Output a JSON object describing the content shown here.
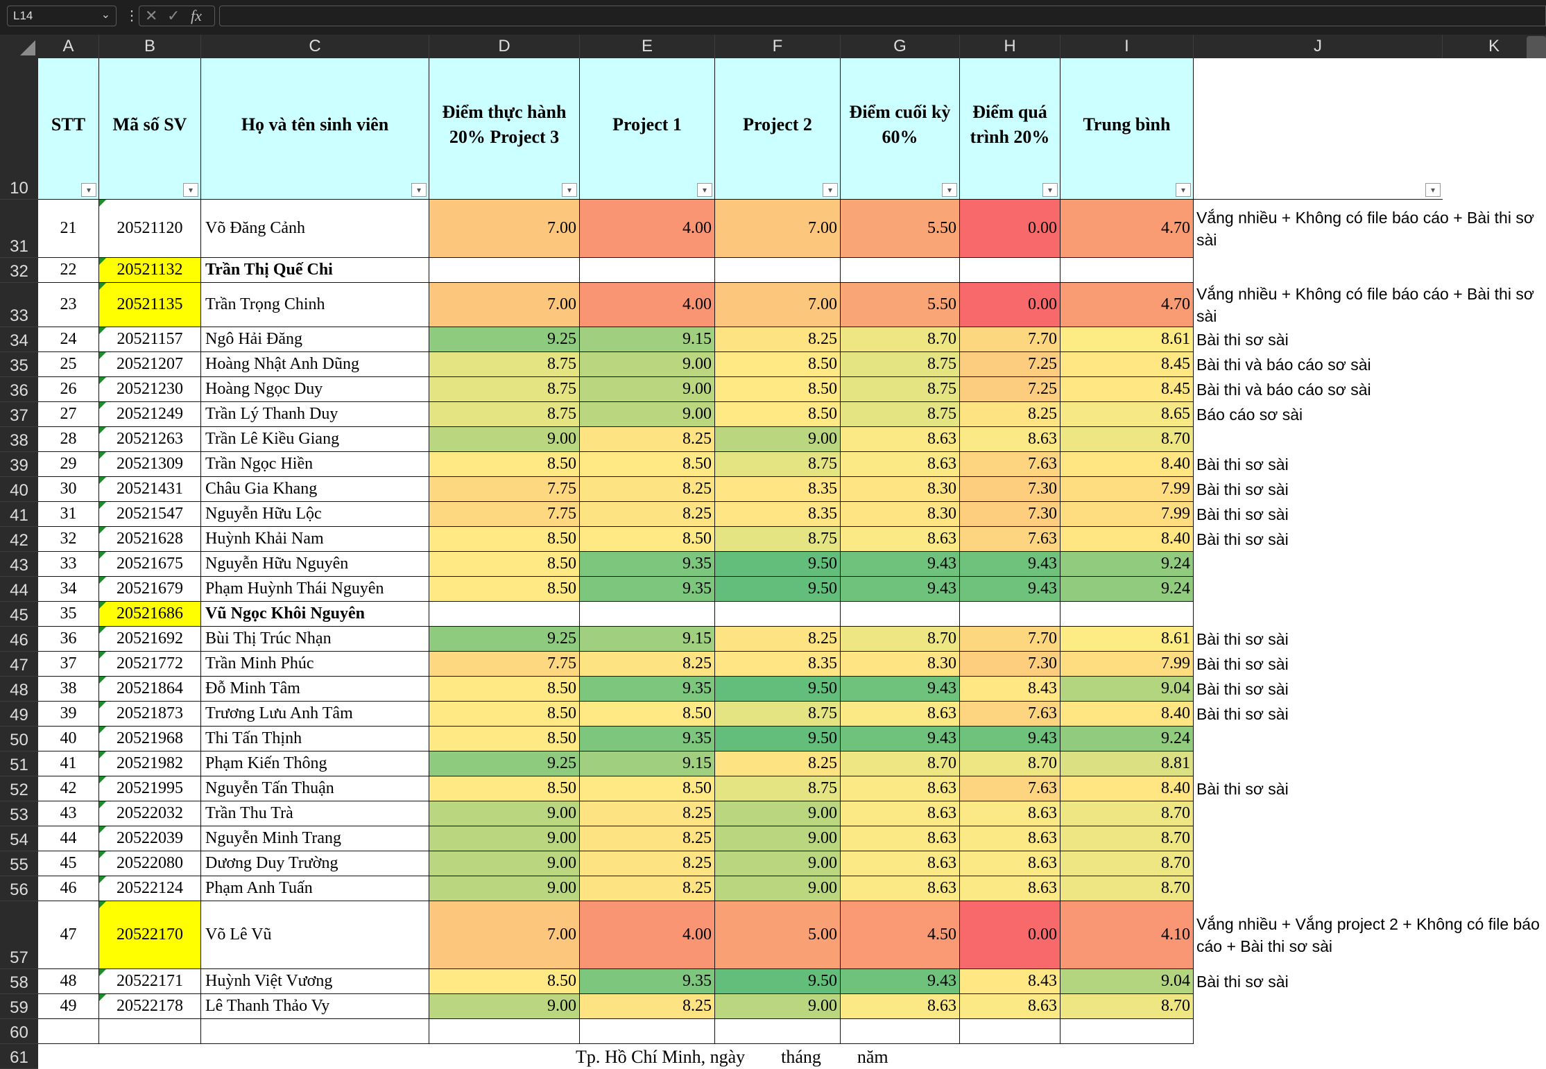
{
  "name_box": "L14",
  "column_letters": [
    "A",
    "B",
    "C",
    "D",
    "E",
    "F",
    "G",
    "H",
    "I",
    "J",
    "K"
  ],
  "headers": {
    "stt": "STT",
    "mssv": "Mã số SV",
    "name": "Họ và tên sinh viên",
    "practice": "Điểm thực hành 20% Project 3",
    "p1": "Project 1",
    "p2": "Project 2",
    "final": "Điểm cuối kỳ 60%",
    "process": "Điểm quá trình 20%",
    "avg": "Trung bình"
  },
  "header_row_number": "10",
  "rows": [
    {
      "r": "31",
      "stt": "21",
      "mssv": "20521120",
      "name": "Võ Đăng Cảnh",
      "d": "7.00",
      "e": "4.00",
      "f": "7.00",
      "g": "5.50",
      "h": "0.00",
      "i": "4.70",
      "note": "Vắng nhiều + Không có file báo cáo + Bài thi sơ sài"
    },
    {
      "r": "32",
      "stt": "22",
      "mssv": "20521132",
      "name": "Trần Thị Quế Chi",
      "d": "",
      "e": "",
      "f": "",
      "g": "",
      "h": "",
      "i": "",
      "note": "",
      "bold": true,
      "yellow": true
    },
    {
      "r": "33",
      "stt": "23",
      "mssv": "20521135",
      "name": "Trần Trọng Chinh",
      "d": "7.00",
      "e": "4.00",
      "f": "7.00",
      "g": "5.50",
      "h": "0.00",
      "i": "4.70",
      "note": "Vắng nhiều + Không có file báo cáo + Bài thi sơ sài",
      "yellow": true
    },
    {
      "r": "34",
      "stt": "24",
      "mssv": "20521157",
      "name": "Ngô Hải Đăng",
      "d": "9.25",
      "e": "9.15",
      "f": "8.25",
      "g": "8.70",
      "h": "7.70",
      "i": "8.61",
      "note": "Bài thi sơ sài"
    },
    {
      "r": "35",
      "stt": "25",
      "mssv": "20521207",
      "name": "Hoàng Nhật Anh Dũng",
      "d": "8.75",
      "e": "9.00",
      "f": "8.50",
      "g": "8.75",
      "h": "7.25",
      "i": "8.45",
      "note": "Bài thi và báo cáo sơ sài"
    },
    {
      "r": "36",
      "stt": "26",
      "mssv": "20521230",
      "name": "Hoàng Ngọc Duy",
      "d": "8.75",
      "e": "9.00",
      "f": "8.50",
      "g": "8.75",
      "h": "7.25",
      "i": "8.45",
      "note": "Bài thi và báo cáo sơ sài"
    },
    {
      "r": "37",
      "stt": "27",
      "mssv": "20521249",
      "name": "Trần Lý Thanh Duy",
      "d": "8.75",
      "e": "9.00",
      "f": "8.50",
      "g": "8.75",
      "h": "8.25",
      "i": "8.65",
      "note": "Báo cáo sơ sài"
    },
    {
      "r": "38",
      "stt": "28",
      "mssv": "20521263",
      "name": "Trần Lê Kiều Giang",
      "d": "9.00",
      "e": "8.25",
      "f": "9.00",
      "g": "8.63",
      "h": "8.63",
      "i": "8.70",
      "note": ""
    },
    {
      "r": "39",
      "stt": "29",
      "mssv": "20521309",
      "name": "Trần Ngọc Hiền",
      "d": "8.50",
      "e": "8.50",
      "f": "8.75",
      "g": "8.63",
      "h": "7.63",
      "i": "8.40",
      "note": "Bài thi sơ sài"
    },
    {
      "r": "40",
      "stt": "30",
      "mssv": "20521431",
      "name": "Châu Gia Khang",
      "d": "7.75",
      "e": "8.25",
      "f": "8.35",
      "g": "8.30",
      "h": "7.30",
      "i": "7.99",
      "note": "Bài thi sơ sài"
    },
    {
      "r": "41",
      "stt": "31",
      "mssv": "20521547",
      "name": "Nguyễn Hữu Lộc",
      "d": "7.75",
      "e": "8.25",
      "f": "8.35",
      "g": "8.30",
      "h": "7.30",
      "i": "7.99",
      "note": "Bài thi sơ sài"
    },
    {
      "r": "42",
      "stt": "32",
      "mssv": "20521628",
      "name": "Huỳnh Khải Nam",
      "d": "8.50",
      "e": "8.50",
      "f": "8.75",
      "g": "8.63",
      "h": "7.63",
      "i": "8.40",
      "note": "Bài thi sơ sài"
    },
    {
      "r": "43",
      "stt": "33",
      "mssv": "20521675",
      "name": "Nguyễn Hữu Nguyên",
      "d": "8.50",
      "e": "9.35",
      "f": "9.50",
      "g": "9.43",
      "h": "9.43",
      "i": "9.24",
      "note": ""
    },
    {
      "r": "44",
      "stt": "34",
      "mssv": "20521679",
      "name": "Phạm Huỳnh Thái Nguyên",
      "d": "8.50",
      "e": "9.35",
      "f": "9.50",
      "g": "9.43",
      "h": "9.43",
      "i": "9.24",
      "note": ""
    },
    {
      "r": "45",
      "stt": "35",
      "mssv": "20521686",
      "name": "Vũ Ngọc Khôi Nguyên",
      "d": "",
      "e": "",
      "f": "",
      "g": "",
      "h": "",
      "i": "",
      "note": "",
      "bold": true,
      "yellow": true
    },
    {
      "r": "46",
      "stt": "36",
      "mssv": "20521692",
      "name": "Bùi Thị Trúc Nhạn",
      "d": "9.25",
      "e": "9.15",
      "f": "8.25",
      "g": "8.70",
      "h": "7.70",
      "i": "8.61",
      "note": "Bài thi sơ sài"
    },
    {
      "r": "47",
      "stt": "37",
      "mssv": "20521772",
      "name": "Trần Minh Phúc",
      "d": "7.75",
      "e": "8.25",
      "f": "8.35",
      "g": "8.30",
      "h": "7.30",
      "i": "7.99",
      "note": "Bài thi sơ sài"
    },
    {
      "r": "48",
      "stt": "38",
      "mssv": "20521864",
      "name": "Đỗ Minh Tâm",
      "d": "8.50",
      "e": "9.35",
      "f": "9.50",
      "g": "9.43",
      "h": "8.43",
      "i": "9.04",
      "note": "Bài thi sơ sài"
    },
    {
      "r": "49",
      "stt": "39",
      "mssv": "20521873",
      "name": "Trương Lưu Anh Tâm",
      "d": "8.50",
      "e": "8.50",
      "f": "8.75",
      "g": "8.63",
      "h": "7.63",
      "i": "8.40",
      "note": "Bài thi sơ sài"
    },
    {
      "r": "50",
      "stt": "40",
      "mssv": "20521968",
      "name": "Thi Tấn Thịnh",
      "d": "8.50",
      "e": "9.35",
      "f": "9.50",
      "g": "9.43",
      "h": "9.43",
      "i": "9.24",
      "note": ""
    },
    {
      "r": "51",
      "stt": "41",
      "mssv": "20521982",
      "name": "Phạm Kiến Thông",
      "d": "9.25",
      "e": "9.15",
      "f": "8.25",
      "g": "8.70",
      "h": "8.70",
      "i": "8.81",
      "note": ""
    },
    {
      "r": "52",
      "stt": "42",
      "mssv": "20521995",
      "name": "Nguyễn Tấn Thuận",
      "d": "8.50",
      "e": "8.50",
      "f": "8.75",
      "g": "8.63",
      "h": "7.63",
      "i": "8.40",
      "note": "Bài thi sơ sài"
    },
    {
      "r": "53",
      "stt": "43",
      "mssv": "20522032",
      "name": "Trần Thu Trà",
      "d": "9.00",
      "e": "8.25",
      "f": "9.00",
      "g": "8.63",
      "h": "8.63",
      "i": "8.70",
      "note": ""
    },
    {
      "r": "54",
      "stt": "44",
      "mssv": "20522039",
      "name": "Nguyễn Minh Trang",
      "d": "9.00",
      "e": "8.25",
      "f": "9.00",
      "g": "8.63",
      "h": "8.63",
      "i": "8.70",
      "note": ""
    },
    {
      "r": "55",
      "stt": "45",
      "mssv": "20522080",
      "name": "Dương Duy Trường",
      "d": "9.00",
      "e": "8.25",
      "f": "9.00",
      "g": "8.63",
      "h": "8.63",
      "i": "8.70",
      "note": ""
    },
    {
      "r": "56",
      "stt": "46",
      "mssv": "20522124",
      "name": "Phạm Anh Tuấn",
      "d": "9.00",
      "e": "8.25",
      "f": "9.00",
      "g": "8.63",
      "h": "8.63",
      "i": "8.70",
      "note": ""
    },
    {
      "r": "57",
      "stt": "47",
      "mssv": "20522170",
      "name": "Võ Lê Vũ",
      "d": "7.00",
      "e": "4.00",
      "f": "5.00",
      "g": "4.50",
      "h": "0.00",
      "i": "4.10",
      "note": "Vắng nhiều + Vắng project 2 + Không có file báo cáo + Bài thi sơ sài",
      "yellow": true
    },
    {
      "r": "58",
      "stt": "48",
      "mssv": "20522171",
      "name": "Huỳnh Việt Vương",
      "d": "8.50",
      "e": "9.35",
      "f": "9.50",
      "g": "9.43",
      "h": "8.43",
      "i": "9.04",
      "note": "Bài thi sơ sài"
    },
    {
      "r": "59",
      "stt": "49",
      "mssv": "20522178",
      "name": "Lê Thanh Thảo Vy",
      "d": "9.00",
      "e": "8.25",
      "f": "9.00",
      "g": "8.63",
      "h": "8.63",
      "i": "8.70",
      "note": ""
    }
  ],
  "empty_row_60": "60",
  "row_61": "61",
  "footer_text": "Tp. Hồ Chí Minh, ngày        tháng        năm",
  "color_scale": {
    "red": "#f8696b",
    "orange": "#f9a576",
    "yellow": "#ffeb84",
    "green": "#63be7b"
  }
}
